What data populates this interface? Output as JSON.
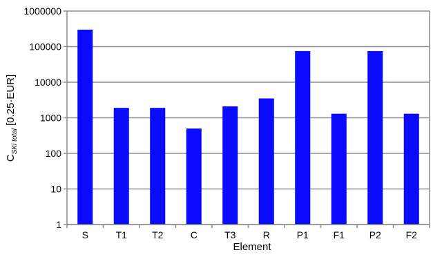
{
  "chart_data": {
    "type": "bar",
    "title": "",
    "xlabel": "Element",
    "ylabel": {
      "main": "C",
      "subscript": "SKi total",
      "units": "[0.25·EUR]"
    },
    "scale": "log",
    "ylim": [
      1,
      1000000
    ],
    "yticks": [
      "1",
      "10",
      "100",
      "1000",
      "10000",
      "100000",
      "1000000"
    ],
    "grid": "horizontal major lines",
    "legend": "none",
    "categories": [
      "S",
      "T1",
      "T2",
      "C",
      "T3",
      "R",
      "P1",
      "F1",
      "P2",
      "F2"
    ],
    "values": [
      300000,
      1900,
      1900,
      500,
      2100,
      3500,
      75000,
      1300,
      75000,
      1300
    ],
    "colors": {
      "bar": "#0a0aff",
      "gridline": "#8c8c8c",
      "axis": "#8c8c8c"
    }
  }
}
